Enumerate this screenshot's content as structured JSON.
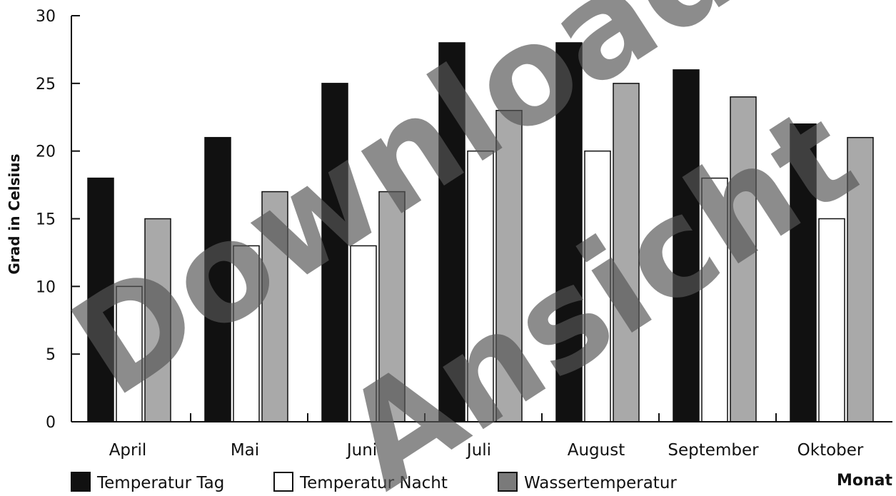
{
  "chart_data": {
    "type": "bar",
    "categories": [
      "April",
      "Mai",
      "Juni",
      "Juli",
      "August",
      "September",
      "Oktober"
    ],
    "series": [
      {
        "name": "Temperatur Tag",
        "color": "#111111",
        "values": [
          18,
          21,
          25,
          28,
          28,
          26,
          22
        ]
      },
      {
        "name": "Temperatur Nacht",
        "color": "#ffffff",
        "values": [
          10,
          13,
          13,
          20,
          20,
          18,
          15
        ]
      },
      {
        "name": "Wassertemperatur",
        "color": "#a9a9a9",
        "values": [
          15,
          17,
          17,
          23,
          25,
          24,
          21
        ]
      }
    ],
    "ylabel": "Grad in Celsius",
    "xlabel": "Monat",
    "ylim": [
      0,
      30
    ],
    "yticks": [
      0,
      5,
      10,
      15,
      20,
      25,
      30
    ],
    "grid": false,
    "legend": "bottom"
  },
  "watermark": {
    "line1": "Download",
    "line2": "Ansicht"
  }
}
